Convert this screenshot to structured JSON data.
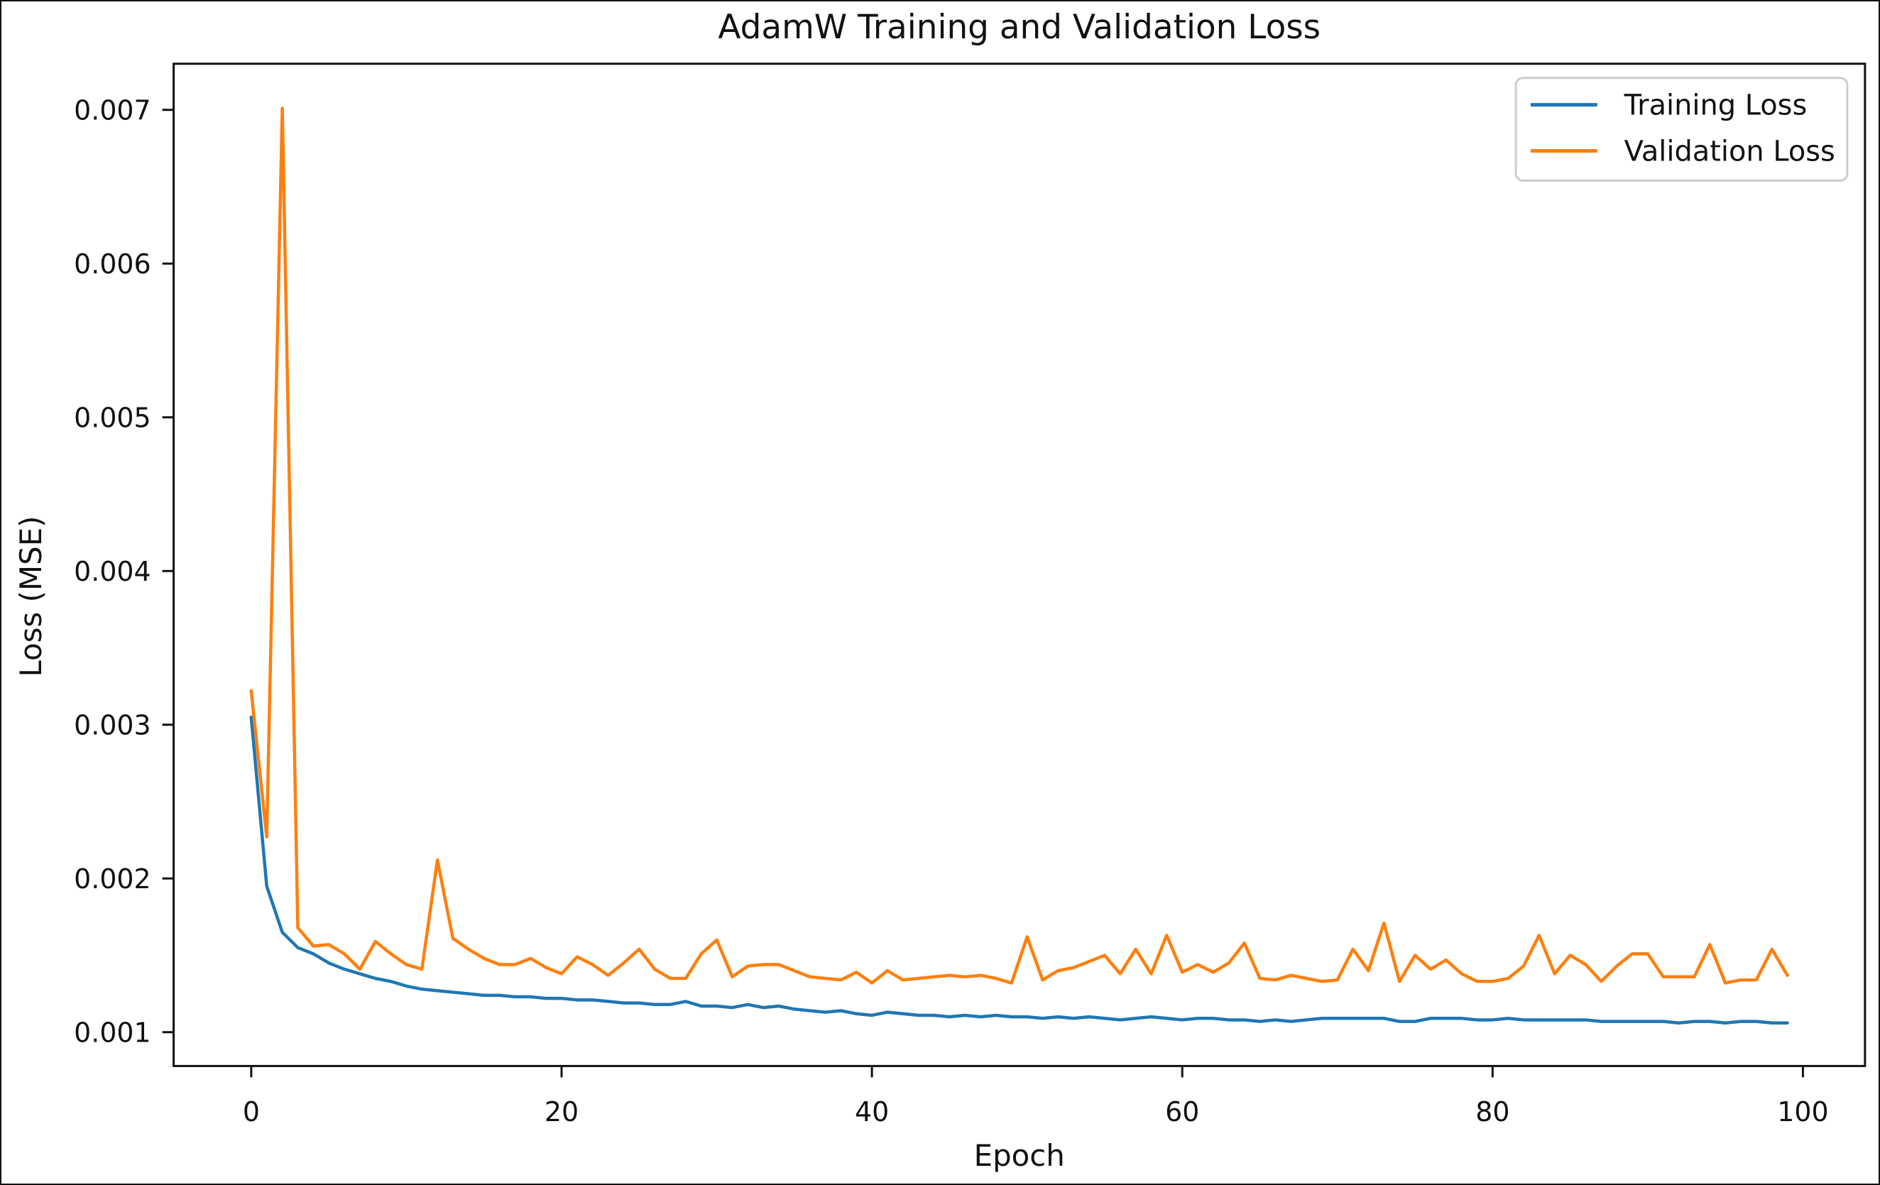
{
  "figure": {
    "title": "AdamW Training and Validation Loss",
    "xlabel": "Epoch",
    "ylabel": "Loss (MSE)"
  },
  "legend": {
    "items": [
      {
        "label": "Training Loss",
        "color": "#1f77b4"
      },
      {
        "label": "Validation Loss",
        "color": "#ff7f0e"
      }
    ],
    "border_color": "#cccccc",
    "position": "upper right"
  },
  "chart_data": {
    "type": "line",
    "title": "AdamW Training and Validation Loss",
    "xlabel": "Epoch",
    "ylabel": "Loss (MSE)",
    "grid": false,
    "legend_position": "upper right",
    "x_ticks": [
      0,
      20,
      40,
      60,
      80,
      100
    ],
    "y_ticks": [
      0.001,
      0.002,
      0.003,
      0.004,
      0.005,
      0.006,
      0.007
    ],
    "xlim": [
      -5.0,
      104.0
    ],
    "ylim": [
      0.00078,
      0.0073
    ],
    "x": [
      0,
      1,
      2,
      3,
      4,
      5,
      6,
      7,
      8,
      9,
      10,
      11,
      12,
      13,
      14,
      15,
      16,
      17,
      18,
      19,
      20,
      21,
      22,
      23,
      24,
      25,
      26,
      27,
      28,
      29,
      30,
      31,
      32,
      33,
      34,
      35,
      36,
      37,
      38,
      39,
      40,
      41,
      42,
      43,
      44,
      45,
      46,
      47,
      48,
      49,
      50,
      51,
      52,
      53,
      54,
      55,
      56,
      57,
      58,
      59,
      60,
      61,
      62,
      63,
      64,
      65,
      66,
      67,
      68,
      69,
      70,
      71,
      72,
      73,
      74,
      75,
      76,
      77,
      78,
      79,
      80,
      81,
      82,
      83,
      84,
      85,
      86,
      87,
      88,
      89,
      90,
      91,
      92,
      93,
      94,
      95,
      96,
      97,
      98,
      99
    ],
    "series": [
      {
        "name": "Training Loss",
        "color": "#1f77b4",
        "values": [
          0.00305,
          0.00195,
          0.00165,
          0.00155,
          0.00151,
          0.00145,
          0.00141,
          0.00138,
          0.00135,
          0.00133,
          0.0013,
          0.00128,
          0.00127,
          0.00126,
          0.00125,
          0.00124,
          0.00124,
          0.00123,
          0.00123,
          0.00122,
          0.00122,
          0.00121,
          0.00121,
          0.0012,
          0.00119,
          0.00119,
          0.00118,
          0.00118,
          0.0012,
          0.00117,
          0.00117,
          0.00116,
          0.00118,
          0.00116,
          0.00117,
          0.00115,
          0.00114,
          0.00113,
          0.00114,
          0.00112,
          0.00111,
          0.00113,
          0.00112,
          0.00111,
          0.00111,
          0.0011,
          0.00111,
          0.0011,
          0.00111,
          0.0011,
          0.0011,
          0.00109,
          0.0011,
          0.00109,
          0.0011,
          0.00109,
          0.00108,
          0.00109,
          0.0011,
          0.00109,
          0.00108,
          0.00109,
          0.00109,
          0.00108,
          0.00108,
          0.00107,
          0.00108,
          0.00107,
          0.00108,
          0.00109,
          0.00109,
          0.00109,
          0.00109,
          0.00109,
          0.00107,
          0.00107,
          0.00109,
          0.00109,
          0.00109,
          0.00108,
          0.00108,
          0.00109,
          0.00108,
          0.00108,
          0.00108,
          0.00108,
          0.00108,
          0.00107,
          0.00107,
          0.00107,
          0.00107,
          0.00107,
          0.00106,
          0.00107,
          0.00107,
          0.00106,
          0.00107,
          0.00107,
          0.00106,
          0.00106
        ]
      },
      {
        "name": "Validation Loss",
        "color": "#ff7f0e",
        "values": [
          0.00322,
          0.00227,
          0.00701,
          0.00168,
          0.00156,
          0.00157,
          0.00151,
          0.00141,
          0.00159,
          0.00151,
          0.00144,
          0.00141,
          0.00212,
          0.00161,
          0.00154,
          0.00148,
          0.00144,
          0.00144,
          0.00148,
          0.00142,
          0.00138,
          0.00149,
          0.00144,
          0.00137,
          0.00145,
          0.00154,
          0.00141,
          0.00135,
          0.00135,
          0.00151,
          0.0016,
          0.00136,
          0.00143,
          0.00144,
          0.00144,
          0.0014,
          0.00136,
          0.00135,
          0.00134,
          0.00139,
          0.00132,
          0.0014,
          0.00134,
          0.00135,
          0.00136,
          0.00137,
          0.00136,
          0.00137,
          0.00135,
          0.00132,
          0.00162,
          0.00134,
          0.0014,
          0.00142,
          0.00146,
          0.0015,
          0.00138,
          0.00154,
          0.00138,
          0.00163,
          0.00139,
          0.00144,
          0.00139,
          0.00145,
          0.00158,
          0.00135,
          0.00134,
          0.00137,
          0.00135,
          0.00133,
          0.00134,
          0.00154,
          0.0014,
          0.00171,
          0.00133,
          0.0015,
          0.00141,
          0.00147,
          0.00138,
          0.00133,
          0.00133,
          0.00135,
          0.00143,
          0.00163,
          0.00138,
          0.0015,
          0.00144,
          0.00133,
          0.00143,
          0.00151,
          0.00151,
          0.00136,
          0.00136,
          0.00136,
          0.00157,
          0.00132,
          0.00134,
          0.00134,
          0.00154,
          0.00137
        ]
      }
    ]
  }
}
